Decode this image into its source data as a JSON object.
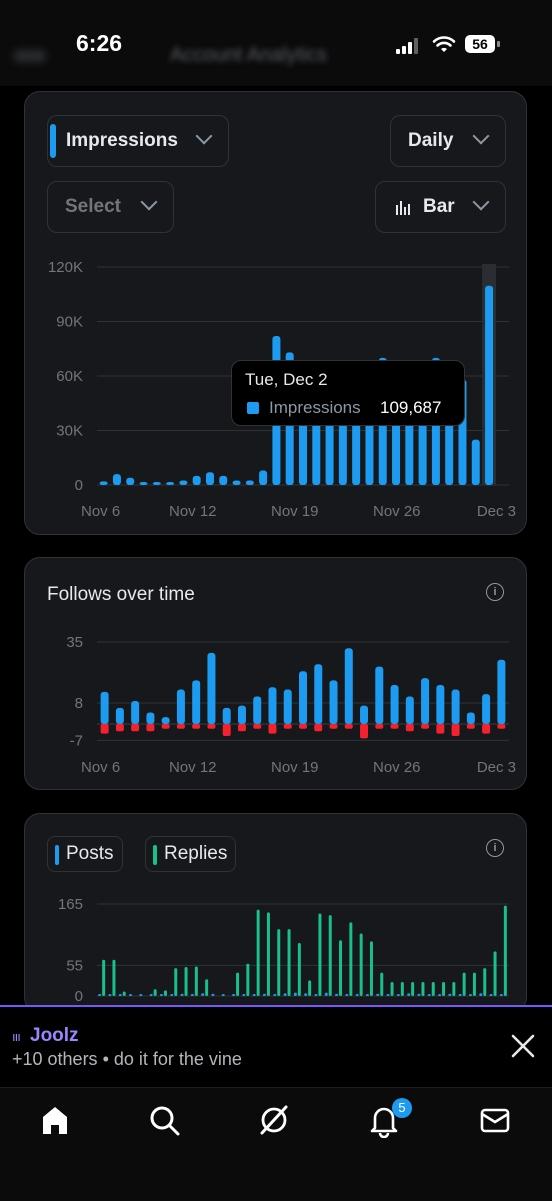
{
  "status_bar": {
    "time": "6:26",
    "battery": "56",
    "blurred_title": "Account Analytics"
  },
  "impressions_card": {
    "metric_label": "Impressions",
    "period_label": "Daily",
    "select_label": "Select",
    "chart_type_label": "Bar",
    "accent_color": "#1d9bf0",
    "tooltip": {
      "date": "Tue, Dec 2",
      "series": "Impressions",
      "value": "109,687"
    }
  },
  "follows_card": {
    "title": "Follows over time"
  },
  "posts_card": {
    "legend_posts": "Posts",
    "legend_replies": "Replies",
    "posts_color": "#1d9bf0",
    "replies_color": "#17c08c"
  },
  "notification": {
    "name": "Joolz",
    "text": "+10 others • do it for the vine"
  },
  "tab_bar": {
    "notification_badge": "5",
    "icons": [
      "home-icon",
      "search-icon",
      "grok-icon",
      "bell-icon",
      "mail-icon"
    ]
  },
  "chart_data": [
    {
      "type": "bar",
      "title": "",
      "y_ticks": [
        "120K",
        "90K",
        "60K",
        "30K",
        "0"
      ],
      "x_ticks": [
        "Nov 6",
        "Nov 12",
        "Nov 19",
        "Nov 26",
        "Dec 3"
      ],
      "ylim": [
        0,
        120000
      ],
      "grid": true,
      "series": [
        {
          "name": "Impressions",
          "color": "#1d9bf0",
          "values": [
            2000,
            6000,
            4000,
            1500,
            1000,
            1000,
            2500,
            5000,
            7000,
            5000,
            2500,
            2500,
            8000,
            82000,
            73000,
            62000,
            63000,
            60000,
            62000,
            64000,
            62000,
            70000,
            68000,
            63000,
            63000,
            70000,
            60000,
            58000,
            25000,
            109687,
            0
          ]
        }
      ]
    },
    {
      "type": "bar",
      "title": "Follows over time",
      "y_ticks": [
        "35",
        "8",
        "-7"
      ],
      "x_ticks": [
        "Nov 6",
        "Nov 12",
        "Nov 19",
        "Nov 26",
        "Dec 3"
      ],
      "ylim": [
        -7,
        35
      ],
      "grid": true,
      "series": [
        {
          "name": "",
          "color": "#1d9bf0",
          "values": [
            14,
            7,
            10,
            5,
            3,
            15,
            19,
            31,
            7,
            8,
            12,
            16,
            15,
            23,
            26,
            19,
            33,
            8,
            25,
            17,
            12,
            20,
            17,
            15,
            5,
            13,
            28
          ]
        },
        {
          "name": "",
          "color": "#f4212e",
          "values": [
            -4,
            -3,
            -3,
            -3,
            -2,
            -2,
            -2,
            -2,
            -5,
            -3,
            -2,
            -4,
            -2,
            -2,
            -3,
            -2,
            -2,
            -6,
            -2,
            -2,
            -3,
            -2,
            -4,
            -5,
            -2,
            -4,
            -2
          ]
        }
      ]
    },
    {
      "type": "bar",
      "title": "",
      "y_ticks": [
        "165",
        "55",
        "0"
      ],
      "ylim": [
        0,
        165
      ],
      "grid": true,
      "series": [
        {
          "name": "Posts",
          "color": "#1d9bf0",
          "values": [
            1,
            1,
            1,
            2,
            0,
            0,
            1,
            2,
            4,
            3,
            5,
            4,
            3,
            2,
            1,
            2,
            4,
            3,
            5,
            6,
            5,
            3,
            6,
            4,
            3,
            2,
            3,
            4,
            3,
            2,
            5,
            4,
            2,
            3,
            4,
            2,
            3,
            5,
            1,
            2
          ]
        },
        {
          "name": "Replies",
          "color": "#17c08c",
          "values": [
            65,
            65,
            8,
            0,
            0,
            12,
            10,
            50,
            52,
            53,
            30,
            0,
            0,
            42,
            58,
            155,
            150,
            120,
            120,
            95,
            28,
            148,
            145,
            100,
            132,
            112,
            98,
            42,
            25,
            25,
            25,
            25,
            25,
            25,
            25,
            42,
            42,
            50,
            80,
            162
          ]
        }
      ]
    }
  ]
}
